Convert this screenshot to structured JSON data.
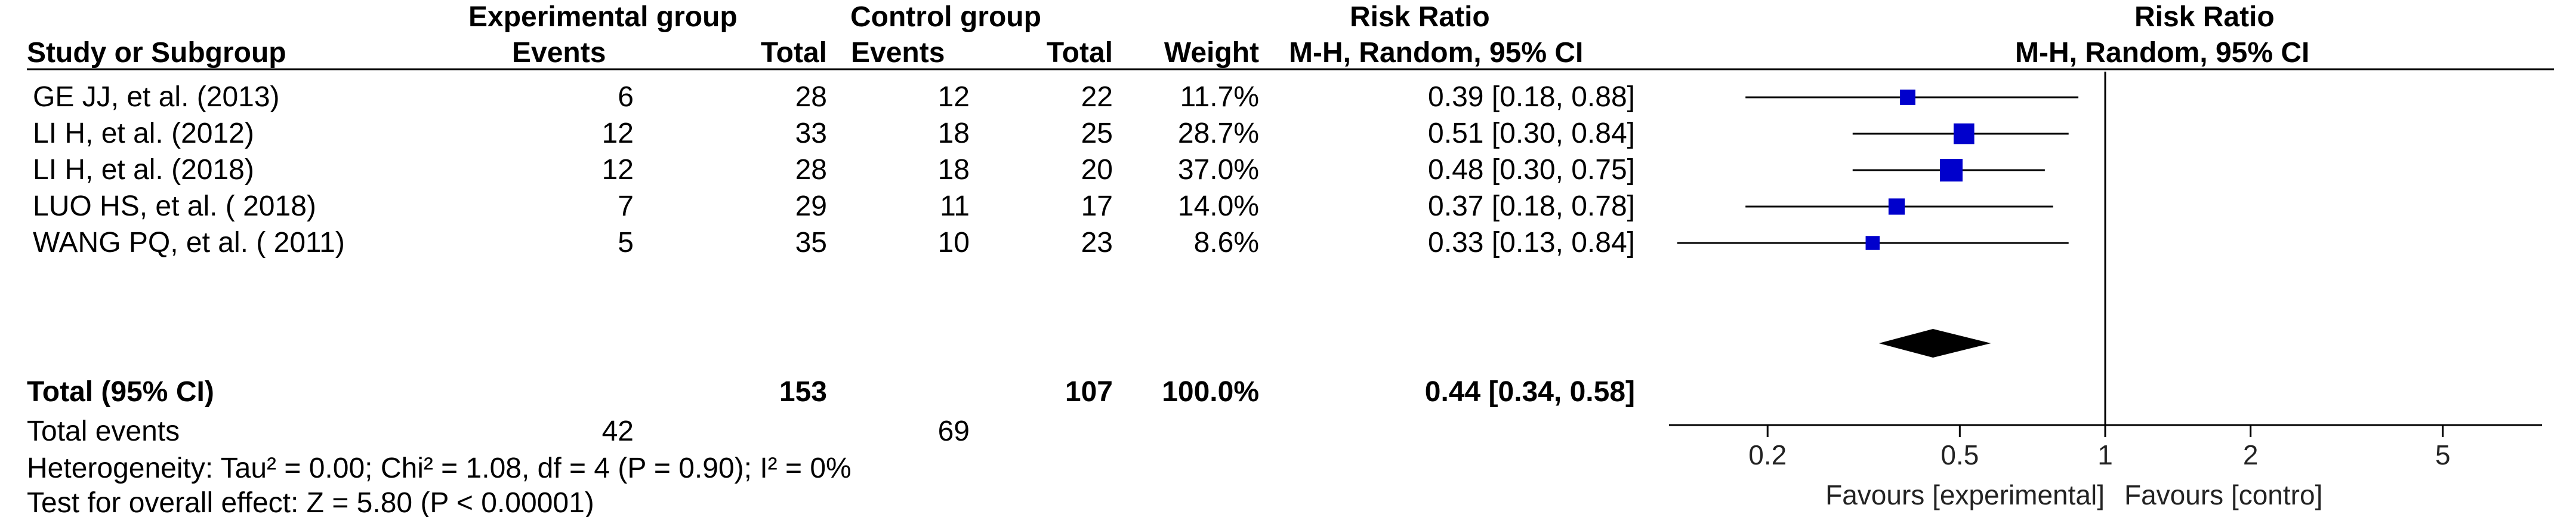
{
  "chart_data": {
    "type": "forest",
    "headers": {
      "study": "Study or Subgroup",
      "experimental_group": "Experimental group",
      "control_group": "Control group",
      "events": "Events",
      "total": "Total",
      "weight": "Weight",
      "rr_col_title": "Risk Ratio",
      "rr_col_method": "M-H, Random, 95% CI",
      "plot_title": "Risk Ratio",
      "plot_method": "M-H, Random, 95% CI"
    },
    "studies": [
      {
        "name": "GE JJ, et al. (2013)",
        "exp_events": "6",
        "exp_total": "28",
        "ctrl_events": "12",
        "ctrl_total": "22",
        "weight": "11.7%",
        "ci_text": "0.39 [0.18, 0.88]",
        "rr": 0.39,
        "lo": 0.18,
        "hi": 0.88,
        "w": 11.7
      },
      {
        "name": "LI H, et al. (2012)",
        "exp_events": "12",
        "exp_total": "33",
        "ctrl_events": "18",
        "ctrl_total": "25",
        "weight": "28.7%",
        "ci_text": "0.51 [0.30, 0.84]",
        "rr": 0.51,
        "lo": 0.3,
        "hi": 0.84,
        "w": 28.7
      },
      {
        "name": "LI H, et al. (2018)",
        "exp_events": "12",
        "exp_total": "28",
        "ctrl_events": "18",
        "ctrl_total": "20",
        "weight": "37.0%",
        "ci_text": "0.48 [0.30, 0.75]",
        "rr": 0.48,
        "lo": 0.3,
        "hi": 0.75,
        "w": 37.0
      },
      {
        "name": "LUO HS, et al. ( 2018)",
        "exp_events": "7",
        "exp_total": "29",
        "ctrl_events": "11",
        "ctrl_total": "17",
        "weight": "14.0%",
        "ci_text": "0.37 [0.18, 0.78]",
        "rr": 0.37,
        "lo": 0.18,
        "hi": 0.78,
        "w": 14.0
      },
      {
        "name": "WANG PQ, et al. ( 2011)",
        "exp_events": "5",
        "exp_total": "35",
        "ctrl_events": "10",
        "ctrl_total": "23",
        "weight": "8.6%",
        "ci_text": "0.33 [0.13, 0.84]",
        "rr": 0.33,
        "lo": 0.13,
        "hi": 0.84,
        "w": 8.6
      }
    ],
    "total": {
      "label": "Total (95% CI)",
      "exp_total": "153",
      "ctrl_total": "107",
      "weight": "100.0%",
      "ci_text": "0.44 [0.34, 0.58]",
      "rr": 0.44,
      "lo": 0.34,
      "hi": 0.58
    },
    "total_events": {
      "label": "Total events",
      "exp": "42",
      "ctrl": "69"
    },
    "heterogeneity": "Heterogeneity: Tau² = 0.00; Chi² = 1.08, df = 4 (P = 0.90); I² = 0%",
    "overall_effect": "Test for overall effect: Z = 5.80 (P < 0.00001)",
    "x_scale": "log",
    "x_range": [
      0.125,
      8
    ],
    "x_ticks": [
      {
        "value": 0.2,
        "label": "0.2"
      },
      {
        "value": 0.5,
        "label": "0.5"
      },
      {
        "value": 1,
        "label": "1"
      },
      {
        "value": 2,
        "label": "2"
      },
      {
        "value": 5,
        "label": "5"
      }
    ],
    "favours_left": "Favours [experimental]",
    "favours_right": "Favours [contro]",
    "marker_color": "#0000cc",
    "diamond_color": "#000000"
  }
}
